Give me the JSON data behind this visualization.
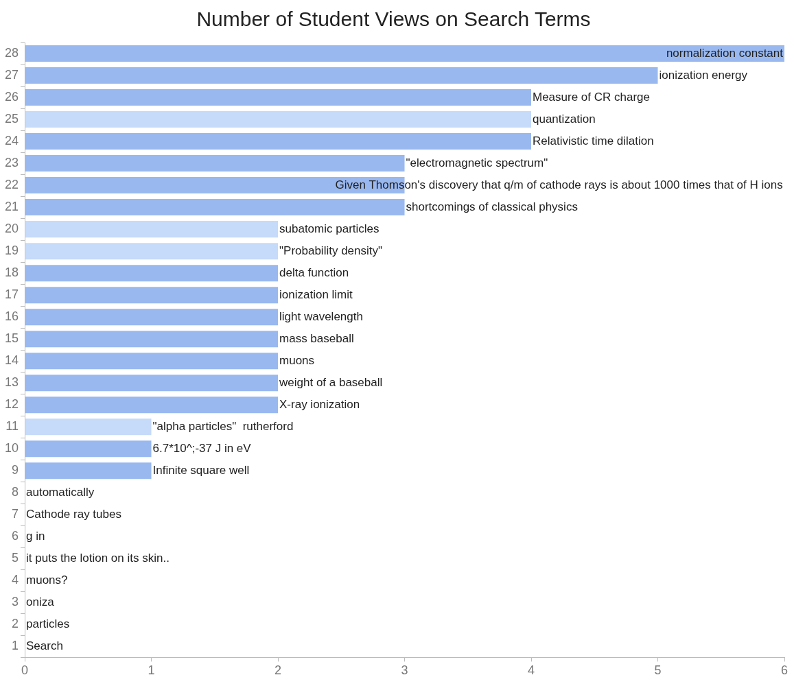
{
  "chart_data": {
    "type": "bar",
    "orientation": "horizontal",
    "title": "Number of Student Views on Search Terms",
    "categories": [
      "28",
      "27",
      "26",
      "25",
      "24",
      "23",
      "22",
      "21",
      "20",
      "19",
      "18",
      "17",
      "16",
      "15",
      "14",
      "13",
      "12",
      "11",
      "10",
      "9",
      "8",
      "7",
      "6",
      "5",
      "4",
      "3",
      "2",
      "1"
    ],
    "values": [
      6,
      5,
      4,
      4,
      4,
      3,
      3,
      3,
      2,
      2,
      2,
      2,
      2,
      2,
      2,
      2,
      2,
      1,
      1,
      1,
      0,
      0,
      0,
      0,
      0,
      0,
      0,
      0
    ],
    "colors": [
      "#99b8f0",
      "#99b8f0",
      "#99b8f0",
      "#c6dafa",
      "#99b8f0",
      "#99b8f0",
      "#99b8f0",
      "#99b8f0",
      "#c6dafa",
      "#c6dafa",
      "#99b8f0",
      "#99b8f0",
      "#99b8f0",
      "#99b8f0",
      "#99b8f0",
      "#99b8f0",
      "#99b8f0",
      "#c6dafa",
      "#99b8f0",
      "#99b8f0",
      "#99b8f0",
      "#99b8f0",
      "#99b8f0",
      "#99b8f0",
      "#99b8f0",
      "#99b8f0",
      "#99b8f0",
      "#99b8f0"
    ],
    "xlim": [
      0,
      6
    ],
    "xticks": [
      0,
      1,
      2,
      3,
      4,
      5,
      6
    ],
    "grid": false,
    "legend": false,
    "annotations": [
      {
        "text": "normalization constant",
        "x": 6,
        "y": "28"
      },
      {
        "text": "ionization energy",
        "x": 5,
        "y": "27"
      },
      {
        "text": "Measure of CR charge",
        "x": 4,
        "y": "26"
      },
      {
        "text": "quantization",
        "x": 4,
        "y": "25"
      },
      {
        "text": "Relativistic time dilation",
        "x": 4,
        "y": "24"
      },
      {
        "text": "\"electromagnetic spectrum\"",
        "x": 3,
        "y": "23"
      },
      {
        "text": "Given Thomson's discovery that q/m of cathode rays is about 1000 times that of H ions",
        "x": 3,
        "y": "22"
      },
      {
        "text": "shortcomings of classical physics",
        "x": 3,
        "y": "21"
      },
      {
        "text": "subatomic particles",
        "x": 2,
        "y": "20"
      },
      {
        "text": "\"Probability density\"",
        "x": 2,
        "y": "19"
      },
      {
        "text": "delta function",
        "x": 2,
        "y": "18"
      },
      {
        "text": "ionization limit",
        "x": 2,
        "y": "17"
      },
      {
        "text": "light wavelength",
        "x": 2,
        "y": "16"
      },
      {
        "text": "mass baseball",
        "x": 2,
        "y": "15"
      },
      {
        "text": "muons",
        "x": 2,
        "y": "14"
      },
      {
        "text": "weight of a baseball",
        "x": 2,
        "y": "13"
      },
      {
        "text": "X-ray ionization",
        "x": 2,
        "y": "12"
      },
      {
        "text": "\"alpha particles\"  rutherford",
        "x": 1,
        "y": "11"
      },
      {
        "text": "6.7*10^;-37 J in eV",
        "x": 1,
        "y": "10"
      },
      {
        "text": "Infinite square well",
        "x": 1,
        "y": "9"
      },
      {
        "text": "automatically",
        "x": 0,
        "y": "8"
      },
      {
        "text": "Cathode ray tubes",
        "x": 0,
        "y": "7"
      },
      {
        "text": "g in",
        "x": 0,
        "y": "6"
      },
      {
        "text": "it puts the lotion on its skin..",
        "x": 0,
        "y": "5"
      },
      {
        "text": "muons?",
        "x": 0,
        "y": "4"
      },
      {
        "text": "oniza",
        "x": 0,
        "y": "3"
      },
      {
        "text": "particles",
        "x": 0,
        "y": "2"
      },
      {
        "text": "Search",
        "x": 0,
        "y": "1"
      }
    ]
  }
}
